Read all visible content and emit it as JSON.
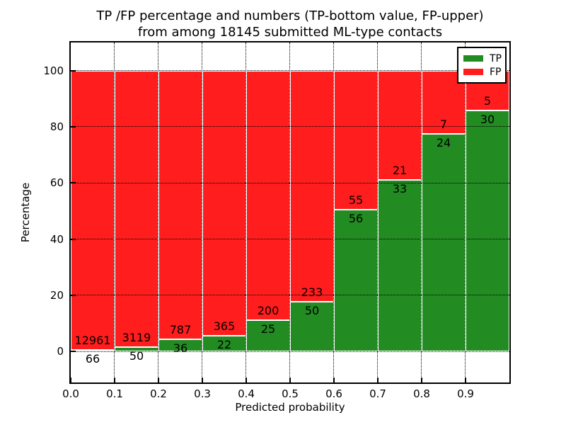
{
  "chart_data": {
    "type": "bar",
    "stacked": true,
    "title_line1": "TP /FP percentage and numbers (TP-bottom value, FP-upper)",
    "title_line2": "from among 18145 submitted ML-type contacts",
    "xlabel": "Predicted probability",
    "ylabel": "Percentage",
    "total_submitted_contacts": 18145,
    "bin_edges": [
      0.0,
      0.1,
      0.2,
      0.3,
      0.4,
      0.5,
      0.6,
      0.7,
      0.8,
      0.9,
      1.0
    ],
    "series": [
      {
        "name": "TP",
        "color": "#228b22",
        "counts": [
          66,
          50,
          36,
          22,
          25,
          50,
          56,
          33,
          24,
          30
        ]
      },
      {
        "name": "FP",
        "color": "#ff1d1d",
        "counts": [
          12961,
          3119,
          787,
          365,
          200,
          233,
          55,
          21,
          7,
          5
        ]
      }
    ],
    "tp_percent_per_bin": [
      0.51,
      1.58,
      4.37,
      5.68,
      11.11,
      17.67,
      50.45,
      61.11,
      77.42,
      85.71
    ],
    "bars_stack_to_percent": 100,
    "xticks": [
      "0.0",
      "0.1",
      "0.2",
      "0.3",
      "0.4",
      "0.5",
      "0.6",
      "0.7",
      "0.8",
      "0.9"
    ],
    "yticks": [
      0,
      20,
      40,
      60,
      80,
      100
    ],
    "xlim": [
      0.0,
      1.0
    ],
    "ylim": [
      -11,
      110
    ],
    "grid": "dotted",
    "legend_position": "upper right",
    "background_color": "#ffffff",
    "label_note": "TP count printed below segment boundary, FP count printed above boundary"
  }
}
